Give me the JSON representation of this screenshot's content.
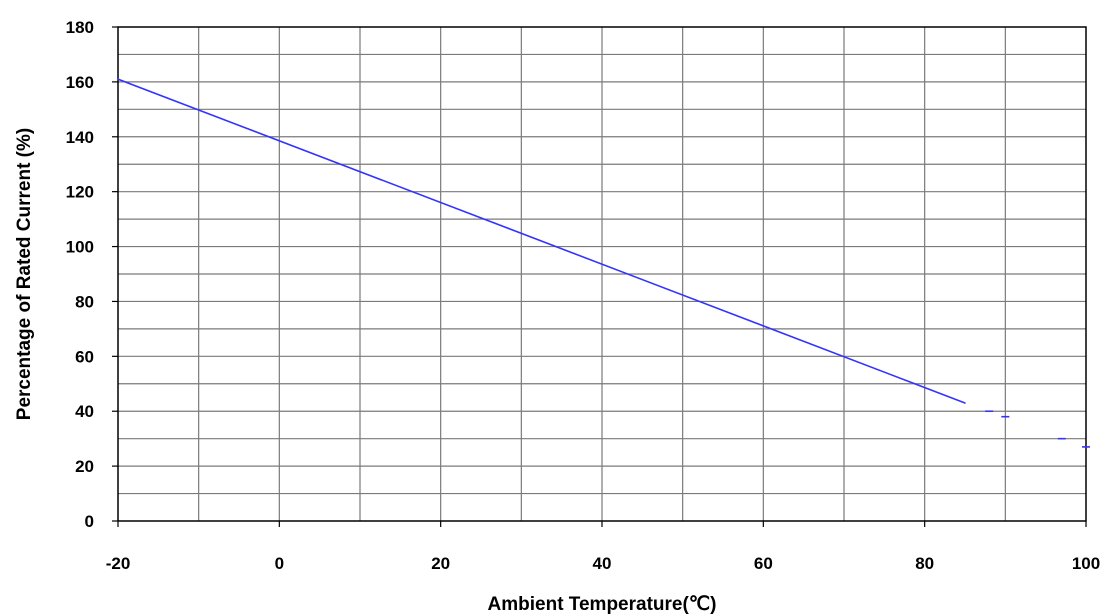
{
  "chart_data": {
    "type": "line",
    "xlabel": "Ambient Temperature(℃)",
    "ylabel": "Percentage of Rated Current (%)",
    "xlim": [
      -20,
      100
    ],
    "ylim": [
      0,
      180
    ],
    "x_ticks": [
      "-20",
      "0",
      "20",
      "40",
      "60",
      "80",
      "100"
    ],
    "y_ticks": [
      "0",
      "20",
      "40",
      "60",
      "80",
      "100",
      "120",
      "140",
      "160",
      "180"
    ],
    "grid": true,
    "series": [
      {
        "color": "#3333ff",
        "x": [
          -20,
          85
        ],
        "y": [
          161,
          43
        ]
      },
      {
        "color": "#3333ff",
        "style": "dashed",
        "x": [
          88,
          90,
          97,
          100
        ],
        "y": [
          40,
          38,
          30,
          27
        ]
      }
    ]
  }
}
